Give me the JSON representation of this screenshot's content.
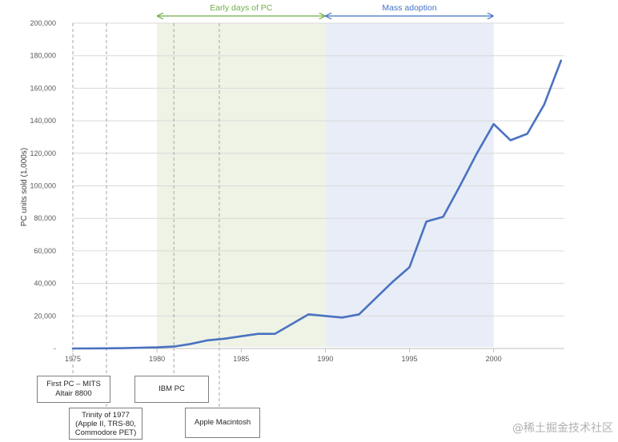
{
  "chart_data": {
    "type": "line",
    "title": "",
    "xlabel": "",
    "ylabel": "PC units sold (1,000s)",
    "xlim": [
      1975,
      2004
    ],
    "ylim": [
      0,
      200000
    ],
    "x_ticks": [
      1975,
      1980,
      1985,
      1990,
      1995,
      2000
    ],
    "y_ticks": [
      0,
      20000,
      40000,
      60000,
      80000,
      100000,
      120000,
      140000,
      160000,
      180000,
      200000
    ],
    "y_tick_labels": [
      "-",
      "20,000",
      "40,000",
      "60,000",
      "80,000",
      "100,000",
      "120,000",
      "140,000",
      "160,000",
      "180,000",
      "200,000"
    ],
    "grid": "horizontal",
    "series": [
      {
        "color": "#4a72c0",
        "x": [
          1975,
          1976,
          1977,
          1978,
          1979,
          1980,
          1981,
          1982,
          1983,
          1984,
          1985,
          1986,
          1987,
          1988,
          1989,
          1990,
          1991,
          1992,
          1993,
          1994,
          1995,
          1996,
          1997,
          1998,
          1999,
          2000,
          2001,
          2002,
          2003,
          2004
        ],
        "values": [
          0,
          50,
          100,
          200,
          500,
          700,
          1200,
          2800,
          5000,
          6000,
          7500,
          9000,
          9000,
          15000,
          21000,
          20000,
          19000,
          21000,
          31000,
          41000,
          50000,
          78000,
          81000,
          100000,
          120000,
          138000,
          128000,
          132000,
          150000,
          177000
        ]
      }
    ],
    "eras": [
      {
        "label": "Early days of PC",
        "start": 1980,
        "end": 1990,
        "fill": "#eef3e6",
        "color": "#70ad47"
      },
      {
        "label": "Mass adoption",
        "start": 1990,
        "end": 2000,
        "fill": "#e8edf7",
        "color": "#4472c4"
      }
    ],
    "events": [
      {
        "label": "First PC – MITS Altair 8800",
        "year": 1975
      },
      {
        "label": "Trinity of 1977 (Apple II, TRS-80, Commodore PET)",
        "year": 1977
      },
      {
        "label": "IBM PC",
        "year": 1981
      },
      {
        "label": "Apple Macintosh",
        "year": 1984
      }
    ]
  },
  "callouts": {
    "altair": [
      "First PC – MITS",
      "Altair 8800"
    ],
    "trinity": [
      "Trinity of 1977",
      "(Apple II, TRS-80,",
      "Commodore PET)"
    ],
    "ibm": [
      "IBM PC"
    ],
    "mac": [
      "Apple Macintosh"
    ]
  },
  "watermark": "@稀土掘金技术社区"
}
